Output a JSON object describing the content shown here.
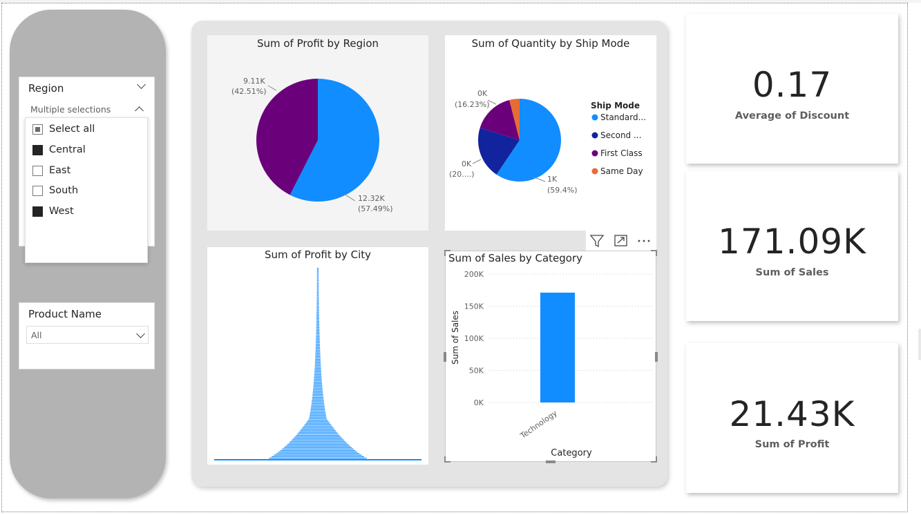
{
  "slicers": {
    "region": {
      "title": "Region",
      "selection": "Multiple selections",
      "items": [
        {
          "label": "Select all",
          "state": "partial"
        },
        {
          "label": "Central",
          "state": "checked"
        },
        {
          "label": "East",
          "state": "unchecked"
        },
        {
          "label": "South",
          "state": "unchecked"
        },
        {
          "label": "West",
          "state": "checked"
        }
      ]
    },
    "product": {
      "title": "Product Name",
      "selection": "All"
    }
  },
  "visuals": {
    "profit_region": {
      "title": "Sum of Profit by Region",
      "slices": [
        {
          "value_label": "12.32K",
          "pct_label": "(57.49%)",
          "pct": 57.49,
          "color": "#118DFF"
        },
        {
          "value_label": "9.11K",
          "pct_label": "(42.51%)",
          "pct": 42.51,
          "color": "#6B007B"
        }
      ]
    },
    "qty_shipmode": {
      "title": "Sum of Quantity by Ship Mode",
      "legend_title": "Ship Mode",
      "legend": [
        {
          "label": "Standard...",
          "color": "#118DFF"
        },
        {
          "label": "Second ...",
          "color": "#12239E"
        },
        {
          "label": "First Class",
          "color": "#6B007B"
        },
        {
          "label": "Same Day",
          "color": "#E66C37"
        }
      ],
      "slices": [
        {
          "value_label": "1K",
          "pct_label": "(59.4%)",
          "pct": 59.4,
          "color": "#118DFF"
        },
        {
          "value_label": "0K",
          "pct_label": "(20....)",
          "pct": 20.4,
          "color": "#12239E"
        },
        {
          "value_label": "0K",
          "pct_label": "(16.23%)",
          "pct": 16.23,
          "color": "#6B007B"
        },
        {
          "value_label": "",
          "pct_label": "",
          "pct": 3.97,
          "color": "#E66C37"
        }
      ]
    },
    "profit_city": {
      "title": "Sum of Profit by City",
      "color": "#118DFF"
    },
    "sales_category": {
      "title": "Sum of Sales by Category",
      "toolbar": {
        "filter_icon": "filter-icon",
        "focus_icon": "focus-mode-icon",
        "more_icon": "more-options-icon"
      }
    }
  },
  "chart_data": {
    "type": "bar",
    "title": "Sum of Sales by Category",
    "xlabel": "Category",
    "ylabel": "Sum of Sales",
    "categories": [
      "Technology"
    ],
    "values": [
      171090
    ],
    "ylim": [
      0,
      200000
    ],
    "yticks": [
      "0K",
      "50K",
      "100K",
      "150K",
      "200K"
    ],
    "ytick_values": [
      0,
      50000,
      100000,
      150000,
      200000
    ],
    "color": "#118DFF",
    "grid": true
  },
  "kpis": [
    {
      "value": "0.17",
      "label": "Average of Discount"
    },
    {
      "value": "171.09K",
      "label": "Sum of Sales"
    },
    {
      "value": "21.43K",
      "label": "Sum of Profit"
    }
  ]
}
